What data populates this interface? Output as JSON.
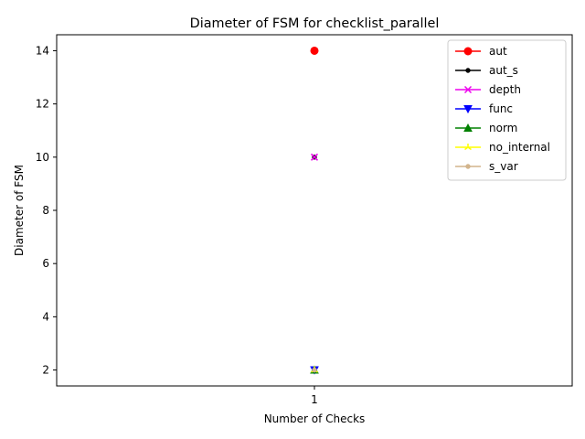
{
  "chart_data": {
    "type": "line",
    "title": "Diameter of FSM for checklist_parallel",
    "xlabel": "Number of Checks",
    "ylabel": "Diameter of FSM",
    "x": [
      1
    ],
    "x_ticks": [
      "1"
    ],
    "y_ticks": [
      "2",
      "4",
      "6",
      "8",
      "10",
      "12",
      "14"
    ],
    "ylim": [
      1.4,
      14.6
    ],
    "legend_position": "top-right",
    "grid": false,
    "series": [
      {
        "name": "aut",
        "values": [
          14
        ],
        "color": "#ff0000",
        "marker": "circle"
      },
      {
        "name": "aut_s",
        "values": [
          10
        ],
        "color": "#000000",
        "marker": "point"
      },
      {
        "name": "depth",
        "values": [
          10
        ],
        "color": "#ee00ee",
        "marker": "x"
      },
      {
        "name": "func",
        "values": [
          2
        ],
        "color": "#0000ff",
        "marker": "triangle-down"
      },
      {
        "name": "norm",
        "values": [
          2
        ],
        "color": "#008000",
        "marker": "triangle-up"
      },
      {
        "name": "no_internal",
        "values": [
          2
        ],
        "color": "#ffff00",
        "marker": "tri-up"
      },
      {
        "name": "s_var",
        "values": [
          2
        ],
        "color": "#d2b48c",
        "marker": "point"
      }
    ]
  }
}
